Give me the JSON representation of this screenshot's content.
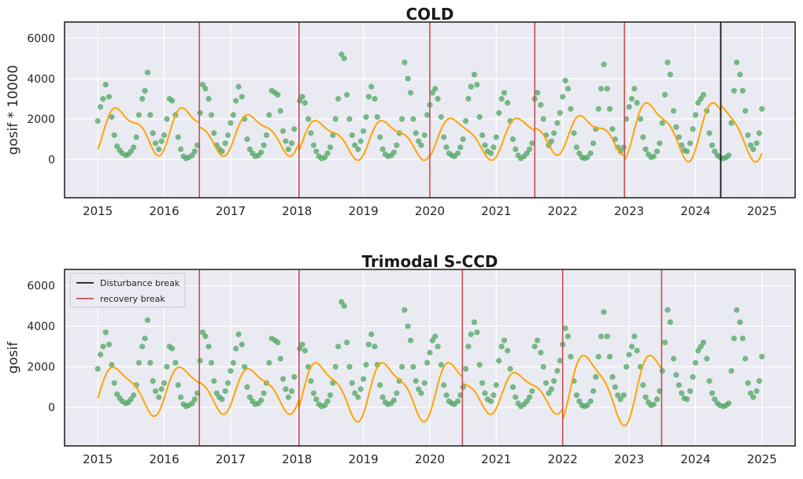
{
  "chart_data": [
    {
      "type": "scatter",
      "title": "COLD",
      "xlabel": "",
      "ylabel": "gosif * 10000",
      "xlim": [
        2014.5,
        2025.5
      ],
      "ylim": [
        -1900,
        6800
      ],
      "x_ticks": [
        2015,
        2016,
        2017,
        2018,
        2019,
        2020,
        2021,
        2022,
        2023,
        2024,
        2025
      ],
      "y_ticks": [
        0,
        2000,
        4000,
        6000
      ],
      "grid": true,
      "recovery_breaks": [
        2016.53,
        2018.03,
        2020.0,
        2021.58,
        2022.93
      ],
      "disturbance_breaks": [
        2024.38
      ],
      "series": [
        {
          "kind": "observations",
          "color": "#55a868"
        },
        {
          "kind": "fit",
          "color": "#ffa500"
        }
      ]
    },
    {
      "type": "scatter",
      "title": "Trimodal S-CCD",
      "xlabel": "",
      "ylabel": "gosif",
      "xlim": [
        2014.5,
        2025.5
      ],
      "ylim": [
        -1900,
        6800
      ],
      "x_ticks": [
        2015,
        2016,
        2017,
        2018,
        2019,
        2020,
        2021,
        2022,
        2023,
        2024,
        2025
      ],
      "y_ticks": [
        0,
        2000,
        4000,
        6000
      ],
      "grid": true,
      "recovery_breaks": [
        2016.53,
        2018.03,
        2020.49,
        2022.0,
        2023.49
      ],
      "disturbance_breaks": [],
      "legend": {
        "position": "top-left",
        "entries": [
          {
            "label": "Disturbance break",
            "color": "#1a1a1a"
          },
          {
            "label": "recovery break",
            "color": "#c44e52"
          }
        ]
      },
      "series": [
        {
          "kind": "observations",
          "color": "#55a868"
        },
        {
          "kind": "fit",
          "color": "#ffa500"
        }
      ]
    }
  ],
  "observations": [
    [
      2015.0,
      1900
    ],
    [
      2015.04,
      2600
    ],
    [
      2015.08,
      3000
    ],
    [
      2015.12,
      3700
    ],
    [
      2015.17,
      3100
    ],
    [
      2015.21,
      2100
    ],
    [
      2015.25,
      1200
    ],
    [
      2015.29,
      650
    ],
    [
      2015.33,
      450
    ],
    [
      2015.37,
      300
    ],
    [
      2015.42,
      200
    ],
    [
      2015.46,
      250
    ],
    [
      2015.5,
      400
    ],
    [
      2015.54,
      600
    ],
    [
      2015.58,
      1100
    ],
    [
      2015.62,
      2200
    ],
    [
      2015.67,
      3000
    ],
    [
      2015.71,
      3400
    ],
    [
      2015.75,
      4300
    ],
    [
      2015.79,
      2200
    ],
    [
      2015.83,
      1300
    ],
    [
      2015.87,
      800
    ],
    [
      2015.92,
      500
    ],
    [
      2015.96,
      900
    ],
    [
      2016.0,
      1200
    ],
    [
      2016.04,
      2000
    ],
    [
      2016.08,
      3000
    ],
    [
      2016.12,
      2900
    ],
    [
      2016.17,
      2200
    ],
    [
      2016.21,
      1100
    ],
    [
      2016.25,
      500
    ],
    [
      2016.29,
      150
    ],
    [
      2016.33,
      50
    ],
    [
      2016.37,
      100
    ],
    [
      2016.42,
      200
    ],
    [
      2016.46,
      400
    ],
    [
      2016.5,
      700
    ],
    [
      2016.54,
      2300
    ],
    [
      2016.58,
      3700
    ],
    [
      2016.62,
      3500
    ],
    [
      2016.67,
      3000
    ],
    [
      2016.71,
      2200
    ],
    [
      2016.75,
      1300
    ],
    [
      2016.79,
      700
    ],
    [
      2016.83,
      500
    ],
    [
      2016.87,
      400
    ],
    [
      2016.92,
      800
    ],
    [
      2016.96,
      1200
    ],
    [
      2017.0,
      1800
    ],
    [
      2017.04,
      2200
    ],
    [
      2017.08,
      2900
    ],
    [
      2017.12,
      3600
    ],
    [
      2017.17,
      3100
    ],
    [
      2017.21,
      2000
    ],
    [
      2017.25,
      1000
    ],
    [
      2017.29,
      500
    ],
    [
      2017.33,
      300
    ],
    [
      2017.37,
      150
    ],
    [
      2017.42,
      200
    ],
    [
      2017.46,
      350
    ],
    [
      2017.5,
      700
    ],
    [
      2017.54,
      1200
    ],
    [
      2017.58,
      2200
    ],
    [
      2017.62,
      3400
    ],
    [
      2017.67,
      3300
    ],
    [
      2017.71,
      3200
    ],
    [
      2017.75,
      2400
    ],
    [
      2017.79,
      1400
    ],
    [
      2017.83,
      900
    ],
    [
      2017.87,
      500
    ],
    [
      2017.92,
      800
    ],
    [
      2017.96,
      1500
    ],
    [
      2018.04,
      2900
    ],
    [
      2018.08,
      3100
    ],
    [
      2018.12,
      2800
    ],
    [
      2018.17,
      2000
    ],
    [
      2018.21,
      1300
    ],
    [
      2018.25,
      700
    ],
    [
      2018.29,
      400
    ],
    [
      2018.33,
      150
    ],
    [
      2018.37,
      50
    ],
    [
      2018.42,
      100
    ],
    [
      2018.46,
      300
    ],
    [
      2018.5,
      600
    ],
    [
      2018.54,
      1200
    ],
    [
      2018.58,
      2000
    ],
    [
      2018.62,
      3000
    ],
    [
      2018.67,
      5200
    ],
    [
      2018.71,
      5000
    ],
    [
      2018.75,
      3200
    ],
    [
      2018.79,
      2000
    ],
    [
      2018.83,
      1200
    ],
    [
      2018.87,
      700
    ],
    [
      2018.92,
      500
    ],
    [
      2018.96,
      900
    ],
    [
      2019.0,
      1400
    ],
    [
      2019.04,
      2100
    ],
    [
      2019.08,
      3100
    ],
    [
      2019.12,
      3600
    ],
    [
      2019.17,
      3000
    ],
    [
      2019.21,
      2100
    ],
    [
      2019.25,
      1100
    ],
    [
      2019.29,
      500
    ],
    [
      2019.33,
      250
    ],
    [
      2019.37,
      150
    ],
    [
      2019.42,
      200
    ],
    [
      2019.46,
      350
    ],
    [
      2019.5,
      700
    ],
    [
      2019.54,
      1300
    ],
    [
      2019.58,
      2000
    ],
    [
      2019.62,
      4800
    ],
    [
      2019.67,
      4000
    ],
    [
      2019.71,
      3300
    ],
    [
      2019.75,
      2000
    ],
    [
      2019.79,
      1300
    ],
    [
      2019.83,
      900
    ],
    [
      2019.87,
      700
    ],
    [
      2019.92,
      1200
    ],
    [
      2019.96,
      2200
    ],
    [
      2020.0,
      2700
    ],
    [
      2020.04,
      3300
    ],
    [
      2020.08,
      3500
    ],
    [
      2020.12,
      3000
    ],
    [
      2020.17,
      2100
    ],
    [
      2020.21,
      1100
    ],
    [
      2020.25,
      600
    ],
    [
      2020.29,
      300
    ],
    [
      2020.33,
      200
    ],
    [
      2020.37,
      150
    ],
    [
      2020.42,
      300
    ],
    [
      2020.46,
      600
    ],
    [
      2020.5,
      1000
    ],
    [
      2020.54,
      1900
    ],
    [
      2020.58,
      3000
    ],
    [
      2020.62,
      3600
    ],
    [
      2020.67,
      4200
    ],
    [
      2020.71,
      3700
    ],
    [
      2020.75,
      2100
    ],
    [
      2020.79,
      1200
    ],
    [
      2020.83,
      700
    ],
    [
      2020.87,
      400
    ],
    [
      2020.92,
      300
    ],
    [
      2020.96,
      600
    ],
    [
      2021.0,
      1100
    ],
    [
      2021.04,
      2300
    ],
    [
      2021.08,
      3000
    ],
    [
      2021.12,
      3300
    ],
    [
      2021.17,
      2800
    ],
    [
      2021.21,
      1900
    ],
    [
      2021.25,
      1000
    ],
    [
      2021.29,
      500
    ],
    [
      2021.33,
      200
    ],
    [
      2021.37,
      50
    ],
    [
      2021.42,
      150
    ],
    [
      2021.46,
      300
    ],
    [
      2021.5,
      500
    ],
    [
      2021.54,
      800
    ],
    [
      2021.58,
      3000
    ],
    [
      2021.62,
      3300
    ],
    [
      2021.67,
      2700
    ],
    [
      2021.71,
      2000
    ],
    [
      2021.75,
      1200
    ],
    [
      2021.79,
      700
    ],
    [
      2021.83,
      900
    ],
    [
      2021.87,
      1300
    ],
    [
      2021.92,
      1800
    ],
    [
      2021.96,
      2300
    ],
    [
      2022.0,
      3100
    ],
    [
      2022.04,
      3900
    ],
    [
      2022.08,
      3500
    ],
    [
      2022.12,
      2500
    ],
    [
      2022.17,
      1300
    ],
    [
      2022.21,
      600
    ],
    [
      2022.25,
      300
    ],
    [
      2022.29,
      100
    ],
    [
      2022.33,
      50
    ],
    [
      2022.37,
      100
    ],
    [
      2022.42,
      300
    ],
    [
      2022.46,
      800
    ],
    [
      2022.5,
      1500
    ],
    [
      2022.54,
      2500
    ],
    [
      2022.58,
      3500
    ],
    [
      2022.62,
      4700
    ],
    [
      2022.67,
      3500
    ],
    [
      2022.71,
      2500
    ],
    [
      2022.75,
      1500
    ],
    [
      2022.79,
      1000
    ],
    [
      2022.83,
      600
    ],
    [
      2022.87,
      400
    ],
    [
      2022.92,
      600
    ],
    [
      2022.96,
      2000
    ],
    [
      2023.0,
      2600
    ],
    [
      2023.04,
      3000
    ],
    [
      2023.08,
      3500
    ],
    [
      2023.12,
      2800
    ],
    [
      2023.17,
      2000
    ],
    [
      2023.21,
      1100
    ],
    [
      2023.25,
      500
    ],
    [
      2023.29,
      250
    ],
    [
      2023.33,
      100
    ],
    [
      2023.37,
      150
    ],
    [
      2023.42,
      400
    ],
    [
      2023.46,
      800
    ],
    [
      2023.5,
      1800
    ],
    [
      2023.54,
      3200
    ],
    [
      2023.58,
      4800
    ],
    [
      2023.62,
      4200
    ],
    [
      2023.67,
      2400
    ],
    [
      2023.71,
      1600
    ],
    [
      2023.75,
      1100
    ],
    [
      2023.79,
      700
    ],
    [
      2023.83,
      450
    ],
    [
      2023.87,
      400
    ],
    [
      2023.92,
      800
    ],
    [
      2023.96,
      1500
    ],
    [
      2024.0,
      2200
    ],
    [
      2024.04,
      2800
    ],
    [
      2024.08,
      3000
    ],
    [
      2024.12,
      3200
    ],
    [
      2024.17,
      2400
    ],
    [
      2024.21,
      1300
    ],
    [
      2024.25,
      700
    ],
    [
      2024.29,
      400
    ],
    [
      2024.33,
      200
    ],
    [
      2024.37,
      100
    ],
    [
      2024.42,
      50
    ],
    [
      2024.46,
      100
    ],
    [
      2024.5,
      200
    ],
    [
      2024.54,
      1800
    ],
    [
      2024.58,
      3400
    ],
    [
      2024.62,
      4800
    ],
    [
      2024.67,
      4200
    ],
    [
      2024.71,
      3400
    ],
    [
      2024.75,
      2400
    ],
    [
      2024.79,
      1200
    ],
    [
      2024.83,
      700
    ],
    [
      2024.87,
      500
    ],
    [
      2024.92,
      800
    ],
    [
      2024.96,
      1300
    ],
    [
      2025.0,
      2500
    ]
  ],
  "fits": [
    {
      "breaks": [
        2015.0,
        2016.53,
        2018.03,
        2020.0,
        2021.58,
        2022.93,
        2024.38,
        2025.0
      ],
      "base": [
        1500,
        1300,
        1050,
        1100,
        1300,
        1500,
        1500
      ],
      "amp": [
        1000,
        900,
        850,
        950,
        800,
        1300,
        1400
      ],
      "amp2": [
        400,
        300,
        300,
        250,
        350,
        400,
        300
      ],
      "phase": [
        0.12,
        0.1,
        0.12,
        0.14,
        0.12,
        0.1,
        0.12
      ]
    },
    {
      "breaks": [
        2015.0,
        2016.53,
        2018.03,
        2020.49,
        2022.0,
        2023.49,
        2025.0
      ],
      "base": [
        900,
        900,
        900,
        800,
        1000,
        0
      ],
      "amp": [
        1100,
        1000,
        1300,
        900,
        1600,
        0
      ],
      "amp2": [
        300,
        300,
        400,
        300,
        400,
        0
      ],
      "phase": [
        0.06,
        0.1,
        0.12,
        0.12,
        0.14,
        0.12
      ],
      "draw": [
        true,
        true,
        true,
        true,
        true,
        false
      ]
    }
  ],
  "colors": {
    "background": "#eaeaf2",
    "grid": "#ffffff",
    "observation": "#55a868",
    "fit": "#ffa500",
    "recovery_break": "#c44e52",
    "disturbance_break": "#1a1a1a"
  }
}
